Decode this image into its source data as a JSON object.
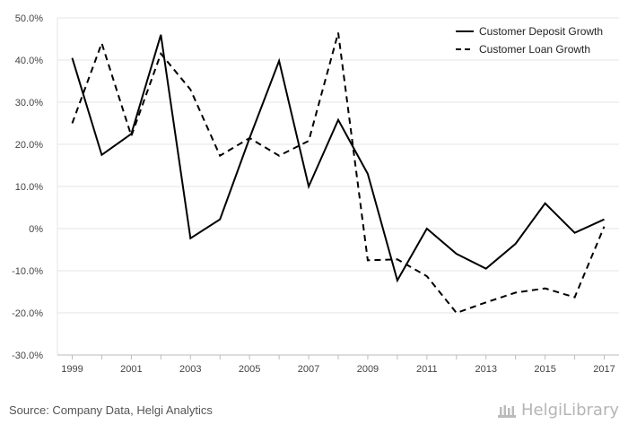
{
  "chart_data": {
    "type": "line",
    "x": [
      1999,
      2000,
      2001,
      2002,
      2003,
      2004,
      2005,
      2006,
      2007,
      2008,
      2009,
      2010,
      2011,
      2012,
      2013,
      2014,
      2015,
      2016,
      2017
    ],
    "x_tick_labels": [
      "1999",
      "2001",
      "2003",
      "2005",
      "2007",
      "2009",
      "2011",
      "2013",
      "2015",
      "2017"
    ],
    "y_tick_labels": [
      "50.0%",
      "40.0%",
      "30.0%",
      "20.0%",
      "10.0%",
      "0%",
      "-10.0%",
      "-20.0%",
      "-30.0%"
    ],
    "ylim": [
      -30,
      50
    ],
    "grid": true,
    "legend_position": "top-right",
    "series": [
      {
        "name": "Customer Deposit Growth",
        "style": "solid",
        "color": "#000000",
        "values": [
          40.5,
          17.5,
          22.5,
          46.0,
          -2.3,
          2.2,
          21.5,
          39.8,
          10.0,
          25.8,
          13.0,
          -12.3,
          0.0,
          -6.0,
          -9.5,
          -3.6,
          6.0,
          -1.0,
          2.2
        ]
      },
      {
        "name": "Customer Loan Growth",
        "style": "dashed",
        "color": "#000000",
        "values": [
          25.0,
          44.0,
          22.0,
          41.5,
          33.0,
          17.3,
          21.5,
          17.3,
          20.8,
          46.5,
          -7.5,
          -7.3,
          -11.3,
          -20.0,
          -17.5,
          -15.2,
          -14.2,
          -16.3,
          0.5
        ]
      }
    ]
  },
  "footer": {
    "source": "Source: Company Data, Helgi Analytics",
    "logo_text": "HelgiLibrary"
  }
}
